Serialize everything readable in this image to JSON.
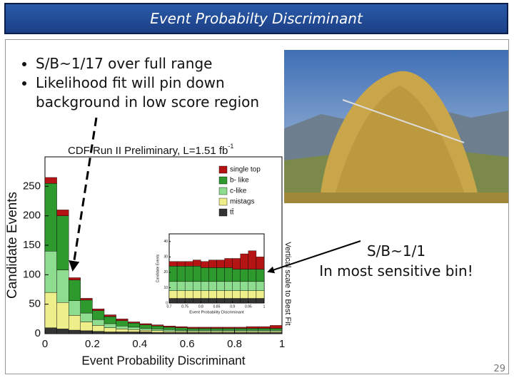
{
  "slide": {
    "title": "Event Probabilty Discriminant",
    "bullets": [
      "S/B~1/17 over full range",
      "Likelihood fit will pin down background in low score region"
    ],
    "callout": [
      "S/B~1/1",
      "In most sensitive bin!"
    ],
    "page_number": "29"
  },
  "chart_data": [
    {
      "type": "histogram",
      "title": "CDF Run II Preliminary, L=1.51 fb",
      "title_superscript": "-1",
      "x_label": "Event Probability Discriminant",
      "y_label": "Candidate Events",
      "annotation": "Vertical scale to Best Fit",
      "bins": [
        0,
        0.05,
        0.1,
        0.15,
        0.2,
        0.25,
        0.3,
        0.35,
        0.4,
        0.45,
        0.5,
        0.55,
        0.6,
        0.65,
        0.7,
        0.75,
        0.8,
        0.85,
        0.9,
        0.95,
        1
      ],
      "series": [
        {
          "name": "single top",
          "color": "#b41414",
          "values": [
            10,
            10,
            4,
            3,
            3,
            3,
            3,
            2,
            2,
            2,
            2,
            2,
            2,
            2,
            2,
            2,
            2,
            3,
            3,
            5
          ]
        },
        {
          "name": "b- like",
          "color": "#2e9a2e",
          "values": [
            115,
            92,
            35,
            22,
            15,
            12,
            9,
            7,
            6,
            5,
            4,
            4,
            3,
            3,
            3,
            3,
            3,
            3,
            3,
            3
          ]
        },
        {
          "name": "c-like",
          "color": "#8edc8e",
          "values": [
            70,
            55,
            25,
            15,
            10,
            7,
            5,
            4,
            3,
            3,
            3,
            2,
            2,
            2,
            2,
            2,
            2,
            2,
            2,
            2
          ]
        },
        {
          "name": "mistags",
          "color": "#eeee8a",
          "values": [
            60,
            45,
            25,
            15,
            10,
            7,
            5,
            4,
            3,
            3,
            2,
            2,
            2,
            2,
            2,
            2,
            2,
            2,
            2,
            2
          ]
        },
        {
          "name": "tt̄",
          "color": "#333333",
          "values": [
            10,
            8,
            6,
            5,
            4,
            3,
            3,
            3,
            3,
            2,
            2,
            2,
            2,
            2,
            2,
            2,
            2,
            2,
            2,
            2
          ]
        }
      ],
      "xlim": [
        0,
        1
      ],
      "xticks": [
        0,
        0.2,
        0.4,
        0.6,
        0.8,
        1
      ],
      "ylim": [
        0,
        300
      ],
      "yticks": [
        0,
        50,
        100,
        150,
        200,
        250
      ],
      "legend": "upper right"
    },
    {
      "type": "histogram",
      "x_label": "Event Probability Discriminant",
      "y_label": "Candidate Events",
      "bins": [
        0.7,
        0.725,
        0.75,
        0.775,
        0.8,
        0.825,
        0.85,
        0.875,
        0.9,
        0.925,
        0.95,
        0.975,
        1
      ],
      "series": [
        {
          "color": "#b41414",
          "values": [
            3,
            3,
            3,
            4,
            4,
            5,
            5,
            6,
            7,
            10,
            12,
            8
          ]
        },
        {
          "color": "#2e9a2e",
          "values": [
            10,
            10,
            10,
            10,
            9,
            9,
            9,
            9,
            8,
            8,
            8,
            8
          ]
        },
        {
          "color": "#8edc8e",
          "values": [
            6,
            6,
            6,
            6,
            6,
            6,
            6,
            6,
            6,
            6,
            6,
            6
          ]
        },
        {
          "color": "#eeee8a",
          "values": [
            5,
            5,
            5,
            5,
            5,
            5,
            5,
            5,
            5,
            5,
            5,
            5
          ]
        },
        {
          "color": "#333333",
          "values": [
            3,
            3,
            3,
            3,
            3,
            3,
            3,
            3,
            3,
            3,
            3,
            3
          ]
        }
      ],
      "xlim": [
        0.7,
        1
      ],
      "xticks": [
        0.7,
        0.75,
        0.8,
        0.85,
        0.9,
        0.95,
        1
      ],
      "ylim": [
        0,
        45
      ],
      "yticks": [
        0,
        10,
        20,
        30,
        40
      ]
    }
  ]
}
